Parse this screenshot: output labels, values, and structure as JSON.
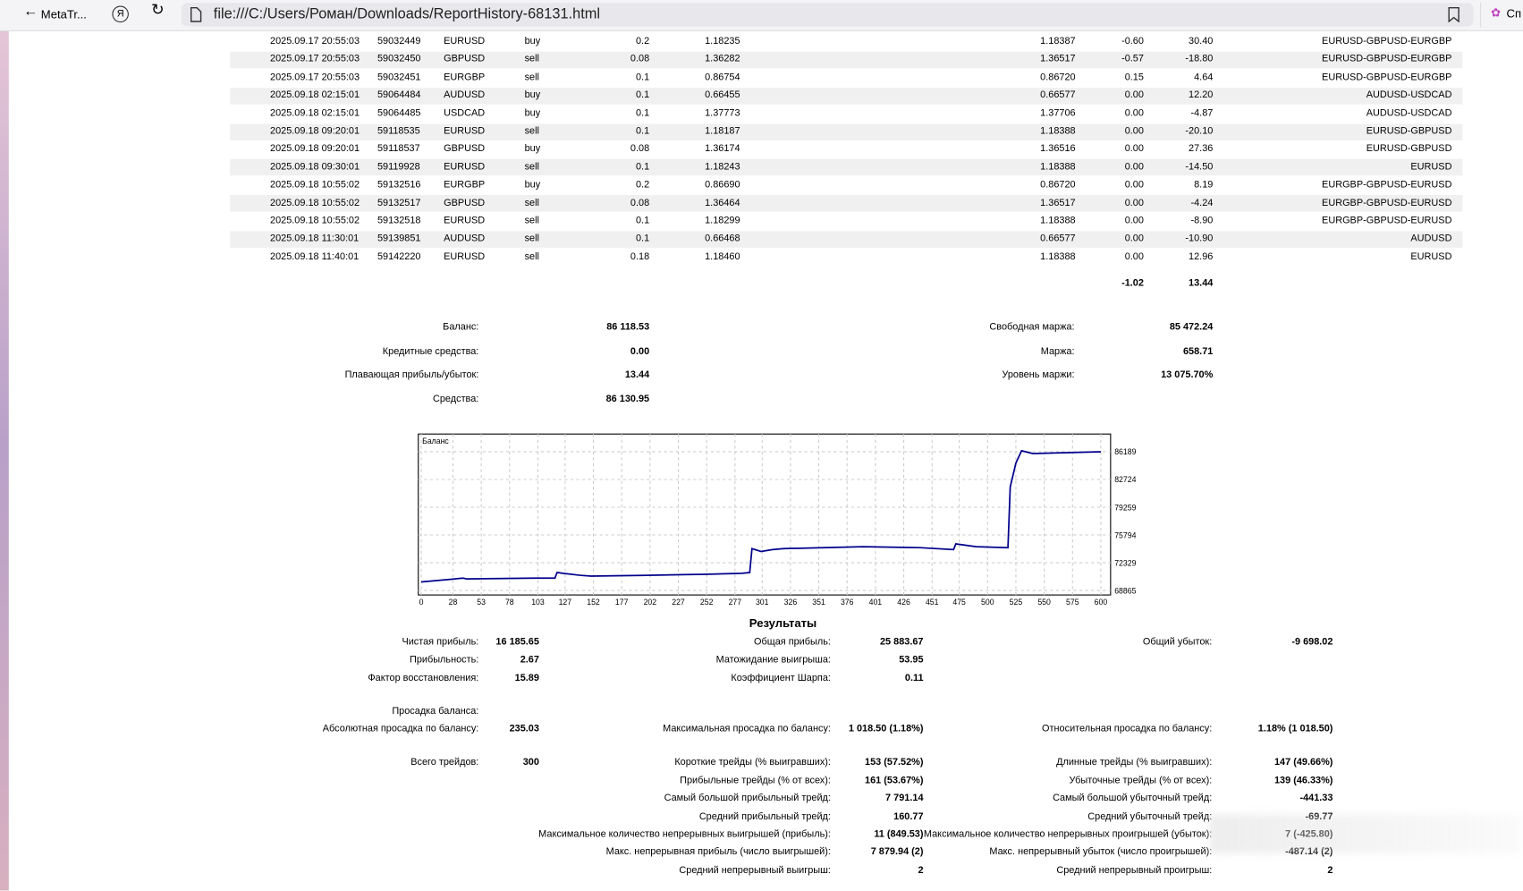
{
  "browser": {
    "tab_title": "MetaTr...",
    "url": "file:///C:/Users/Роман/Downloads/ReportHistory-68131.html",
    "side_button": "Сп"
  },
  "deals": {
    "rows": [
      [
        "2025.09.17 20:55:03",
        "59032449",
        "EURUSD",
        "buy",
        "0.2",
        "1.18235",
        "1.18387",
        "-0.60",
        "30.40",
        "EURUSD-GBPUSD-EURGBP"
      ],
      [
        "2025.09.17 20:55:03",
        "59032450",
        "GBPUSD",
        "sell",
        "0.08",
        "1.36282",
        "1.36517",
        "-0.57",
        "-18.80",
        "EURUSD-GBPUSD-EURGBP"
      ],
      [
        "2025.09.17 20:55:03",
        "59032451",
        "EURGBP",
        "sell",
        "0.1",
        "0.86754",
        "0.86720",
        "0.15",
        "4.64",
        "EURUSD-GBPUSD-EURGBP"
      ],
      [
        "2025.09.18 02:15:01",
        "59064484",
        "AUDUSD",
        "buy",
        "0.1",
        "0.66455",
        "0.66577",
        "0.00",
        "12.20",
        "AUDUSD-USDCAD"
      ],
      [
        "2025.09.18 02:15:01",
        "59064485",
        "USDCAD",
        "buy",
        "0.1",
        "1.37773",
        "1.37706",
        "0.00",
        "-4.87",
        "AUDUSD-USDCAD"
      ],
      [
        "2025.09.18 09:20:01",
        "59118535",
        "EURUSD",
        "sell",
        "0.1",
        "1.18187",
        "1.18388",
        "0.00",
        "-20.10",
        "EURUSD-GBPUSD"
      ],
      [
        "2025.09.18 09:20:01",
        "59118537",
        "GBPUSD",
        "buy",
        "0.08",
        "1.36174",
        "1.36516",
        "0.00",
        "27.36",
        "EURUSD-GBPUSD"
      ],
      [
        "2025.09.18 09:30:01",
        "59119928",
        "EURUSD",
        "sell",
        "0.1",
        "1.18243",
        "1.18388",
        "0.00",
        "-14.50",
        "EURUSD"
      ],
      [
        "2025.09.18 10:55:02",
        "59132516",
        "EURGBP",
        "buy",
        "0.2",
        "0.86690",
        "0.86720",
        "0.00",
        "8.19",
        "EURGBP-GBPUSD-EURUSD"
      ],
      [
        "2025.09.18 10:55:02",
        "59132517",
        "GBPUSD",
        "sell",
        "0.08",
        "1.36464",
        "1.36517",
        "0.00",
        "-4.24",
        "EURGBP-GBPUSD-EURUSD"
      ],
      [
        "2025.09.18 10:55:02",
        "59132518",
        "EURUSD",
        "sell",
        "0.1",
        "1.18299",
        "1.18388",
        "0.00",
        "-8.90",
        "EURGBP-GBPUSD-EURUSD"
      ],
      [
        "2025.09.18 11:30:01",
        "59139851",
        "AUDUSD",
        "sell",
        "0.1",
        "0.66468",
        "0.66577",
        "0.00",
        "-10.90",
        "AUDUSD"
      ],
      [
        "2025.09.18 11:40:01",
        "59142220",
        "EURUSD",
        "sell",
        "0.18",
        "1.18460",
        "1.18388",
        "0.00",
        "12.96",
        "EURUSD"
      ]
    ],
    "totals": [
      "-1.02",
      "13.44"
    ]
  },
  "account": {
    "left": [
      [
        "Баланс:",
        "86 118.53"
      ],
      [
        "Кредитные средства:",
        "0.00"
      ],
      [
        "Плавающая прибыль/убыток:",
        "13.44"
      ],
      [
        "Средства:",
        "86 130.95"
      ]
    ],
    "right": [
      [
        "Свободная маржа:",
        "85 472.24"
      ],
      [
        "Маржа:",
        "658.71"
      ],
      [
        "Уровень маржи:",
        "13 075.70%"
      ]
    ]
  },
  "chart_data": {
    "type": "line",
    "title": "Баланс",
    "color": "#00008b",
    "grid": true,
    "xlim": [
      0,
      600
    ],
    "xticks": [
      0,
      28,
      53,
      78,
      103,
      127,
      152,
      177,
      202,
      227,
      252,
      277,
      301,
      326,
      351,
      376,
      401,
      426,
      451,
      475,
      500,
      525,
      550,
      575,
      600
    ],
    "ylim": [
      68300,
      88400
    ],
    "yticks": [
      68865,
      72329,
      75794,
      79259,
      82724,
      86189
    ],
    "x": [
      0,
      37,
      40,
      100,
      118,
      120,
      125,
      140,
      150,
      200,
      250,
      283,
      290,
      292,
      300,
      310,
      320,
      390,
      440,
      470,
      472,
      490,
      518,
      520,
      525,
      530,
      540,
      600
    ],
    "values": [
      69930,
      70400,
      70300,
      70400,
      70400,
      71120,
      71000,
      70760,
      70650,
      70760,
      70880,
      71000,
      71100,
      74090,
      73730,
      73970,
      74090,
      74330,
      74210,
      73970,
      74680,
      74330,
      74210,
      81800,
      84770,
      86310,
      85960,
      86190
    ]
  },
  "results": {
    "title": "Результаты",
    "rows": [
      {
        "left": [
          "Чистая прибыль:",
          "16 185.65"
        ],
        "middle": [
          "Общая прибыль:",
          "25 883.67"
        ],
        "right": [
          "Общий убыток:",
          "-9 698.02"
        ]
      },
      {
        "left": [
          "Прибыльность:",
          "2.67"
        ],
        "middle": [
          "Матожидание выигрыша:",
          "53.95"
        ]
      },
      {
        "left": [
          "Фактор восстановления:",
          "15.89"
        ],
        "middle": [
          "Коэффициент Шарпа:",
          "0.11"
        ]
      },
      {
        "left": [
          "Просадка баланса:"
        ]
      },
      {
        "left": [
          "Абсолютная просадка по балансу:",
          "235.03"
        ],
        "middle": [
          "Максимальная просадка по балансу:",
          "1 018.50 (1.18%)"
        ],
        "right": [
          "Относительная просадка по балансу:",
          "1.18% (1 018.50)"
        ]
      },
      {
        "left": [
          "Всего трейдов:",
          "300"
        ],
        "middle": [
          "Короткие трейды (% выигравших):",
          "153 (57.52%)"
        ],
        "right": [
          "Длинные трейды (% выигравших):",
          "147 (49.66%)"
        ]
      },
      {
        "middle": [
          "Прибыльные трейды (% от всех):",
          "161 (53.67%)"
        ],
        "right": [
          "Убыточные трейды (% от всех):",
          "139 (46.33%)"
        ]
      },
      {
        "middle": [
          "Самый большой прибыльный трейд:",
          "7 791.14"
        ],
        "right": [
          "Самый большой убыточный трейд:",
          "-441.33"
        ]
      },
      {
        "middle": [
          "Средний прибыльный трейд:",
          "160.77"
        ],
        "right": [
          "Средний убыточный трейд:",
          "-69.77"
        ]
      },
      {
        "middle": [
          "Максимальное количество непрерывных выигрышей (прибыль):",
          "11 (849.53)"
        ],
        "right": [
          "Максимальное количество непрерывных проигрышей (убыток):",
          "7 (-425.80)"
        ]
      },
      {
        "middle": [
          "Макс. непрерывная прибыль (число выигрышей):",
          "7 879.94 (2)"
        ],
        "right": [
          "Макс. непрерывный убыток (число проигрышей):",
          "-487.14 (2)"
        ]
      },
      {
        "middle": [
          "Средний непрерывный выигрыш:",
          "2"
        ],
        "right": [
          "Средний непрерывный проигрыш:",
          "2"
        ]
      }
    ]
  }
}
